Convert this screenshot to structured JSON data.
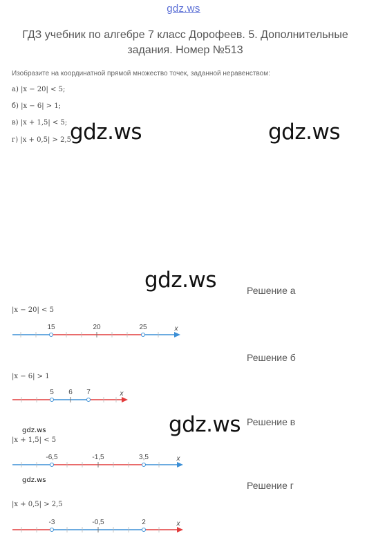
{
  "site": {
    "logo": "gdz.ws"
  },
  "header": {
    "title": "ГДЗ учебник по алгебре 7 класс Дорофеев. 5. Дополнительные задания. Номер №513"
  },
  "task": {
    "intro": "Изобразите на координатной прямой множество точек, заданной неравенством:",
    "items": [
      "а) |x − 20| < 5;",
      "б) |x − 6| > 1;",
      "в) |x + 1,5| < 5;",
      "г) |x + 0,5| > 2,5"
    ]
  },
  "watermark": {
    "large": "gdz.ws",
    "small": "gdz.ws"
  },
  "colors": {
    "blue": "#3b8fd6",
    "red": "#e23b3b",
    "axis_label": "#444444"
  },
  "solutions": [
    {
      "label": "Решение а",
      "inequality": "|x − 20| < 5",
      "ticks": [
        "15",
        "20",
        "25"
      ],
      "axis_label": "x"
    },
    {
      "label": "Решение б",
      "inequality": "|x − 6| > 1",
      "ticks": [
        "5",
        "6",
        "7"
      ],
      "axis_label": "x"
    },
    {
      "label": "Решение в",
      "inequality": "|x + 1,5| < 5",
      "ticks": [
        "-6,5",
        "-1,5",
        "3,5"
      ],
      "axis_label": "x"
    },
    {
      "label": "Решение г",
      "inequality": "|x + 0,5| > 2,5",
      "ticks": [
        "-3",
        "-0,5",
        "2"
      ],
      "axis_label": "x"
    }
  ]
}
